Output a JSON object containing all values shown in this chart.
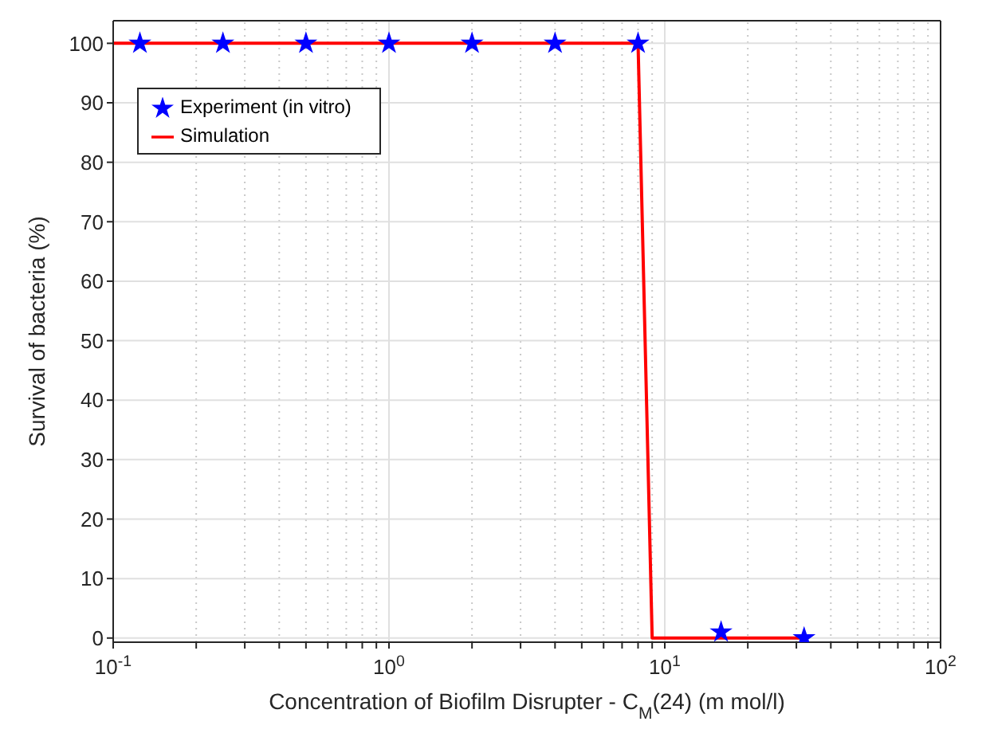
{
  "chart_data": {
    "type": "scatter",
    "xlabel": "Concentration of Biofilm Disrupter - C$_{M}$(24) (m mol/l)",
    "ylabel": "Survival of bacteria (%)",
    "log": "x",
    "grid": true,
    "legend": "top left",
    "xlim": [
      0.1,
      100
    ],
    "ylim": [
      -0.7,
      103.8
    ],
    "xticks": [
      {
        "value": 0.1,
        "label": "10$^{-1}$"
      },
      {
        "value": 0.2,
        "label": null
      },
      {
        "value": 0.3,
        "label": null
      },
      {
        "value": 0.4,
        "label": null
      },
      {
        "value": 0.5,
        "label": null
      },
      {
        "value": 0.6,
        "label": null
      },
      {
        "value": 0.7,
        "label": null
      },
      {
        "value": 0.8,
        "label": null
      },
      {
        "value": 0.9,
        "label": null
      },
      {
        "value": 1,
        "label": "10$^{0}$"
      },
      {
        "value": 2,
        "label": null
      },
      {
        "value": 3,
        "label": null
      },
      {
        "value": 4,
        "label": null
      },
      {
        "value": 5,
        "label": null
      },
      {
        "value": 6,
        "label": null
      },
      {
        "value": 7,
        "label": null
      },
      {
        "value": 8,
        "label": null
      },
      {
        "value": 9,
        "label": null
      },
      {
        "value": 10,
        "label": "10$^{1}$"
      },
      {
        "value": 20,
        "label": null
      },
      {
        "value": 30,
        "label": null
      },
      {
        "value": 40,
        "label": null
      },
      {
        "value": 50,
        "label": null
      },
      {
        "value": 60,
        "label": null
      },
      {
        "value": 70,
        "label": null
      },
      {
        "value": 80,
        "label": null
      },
      {
        "value": 90,
        "label": null
      },
      {
        "value": 100,
        "label": "10$^{2}$"
      }
    ],
    "yticks": [
      0,
      10,
      20,
      30,
      40,
      50,
      60,
      70,
      80,
      90,
      100
    ],
    "series": [
      {
        "name": "Experiment (in vitro)",
        "color": "#0000ff",
        "marker": "star",
        "x": [
          0.125,
          0.25,
          0.5,
          1,
          2,
          4,
          8,
          16,
          32
        ],
        "values": [
          100,
          100,
          100,
          100,
          100,
          100,
          100,
          1,
          0
        ]
      },
      {
        "name": "Simulation",
        "type": "line",
        "color": "#ff0000",
        "marker": "none",
        "line_style": "solid",
        "x": [
          0.1,
          8,
          9,
          32
        ],
        "values": [
          100,
          100,
          0,
          0
        ]
      }
    ]
  }
}
